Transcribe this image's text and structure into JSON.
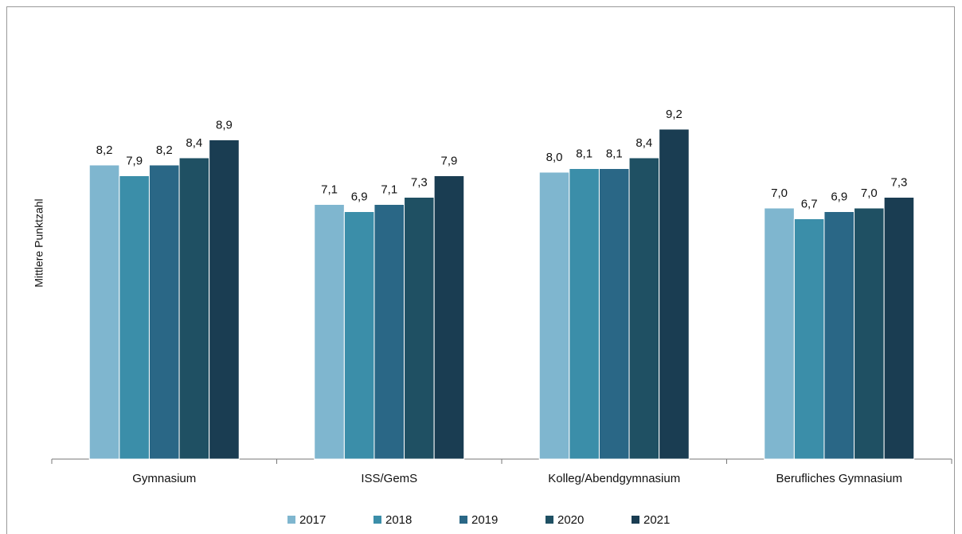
{
  "chart_data": {
    "type": "bar",
    "y_label": "Mittlere Punktzahl",
    "categories": [
      "Gymnasium",
      "ISS/GemS",
      "Kolleg/Abendgymnasium",
      "Berufliches Gymnasium"
    ],
    "series": [
      {
        "name": "2017",
        "color": "#7fb6cf",
        "values": [
          8.2,
          7.1,
          8.0,
          7.0
        ],
        "value_labels": [
          "8,2",
          "7,1",
          "8,0",
          "7,0"
        ]
      },
      {
        "name": "2018",
        "color": "#3b8ea9",
        "values": [
          7.9,
          6.9,
          8.1,
          6.7
        ],
        "value_labels": [
          "7,9",
          "6,9",
          "8,1",
          "6,7"
        ]
      },
      {
        "name": "2019",
        "color": "#2a6786",
        "values": [
          8.2,
          7.1,
          8.1,
          6.9
        ],
        "value_labels": [
          "8,2",
          "7,1",
          "8,1",
          "6,9"
        ]
      },
      {
        "name": "2020",
        "color": "#1f5063",
        "values": [
          8.4,
          7.3,
          8.4,
          7.0
        ],
        "value_labels": [
          "8,4",
          "7,3",
          "8,4",
          "7,0"
        ]
      },
      {
        "name": "2021",
        "color": "#1a3d52",
        "values": [
          8.9,
          7.9,
          9.2,
          7.3
        ],
        "value_labels": [
          "8,9",
          "7,9",
          "9,2",
          "7,3"
        ]
      }
    ],
    "ylim": [
      0,
      12
    ]
  }
}
